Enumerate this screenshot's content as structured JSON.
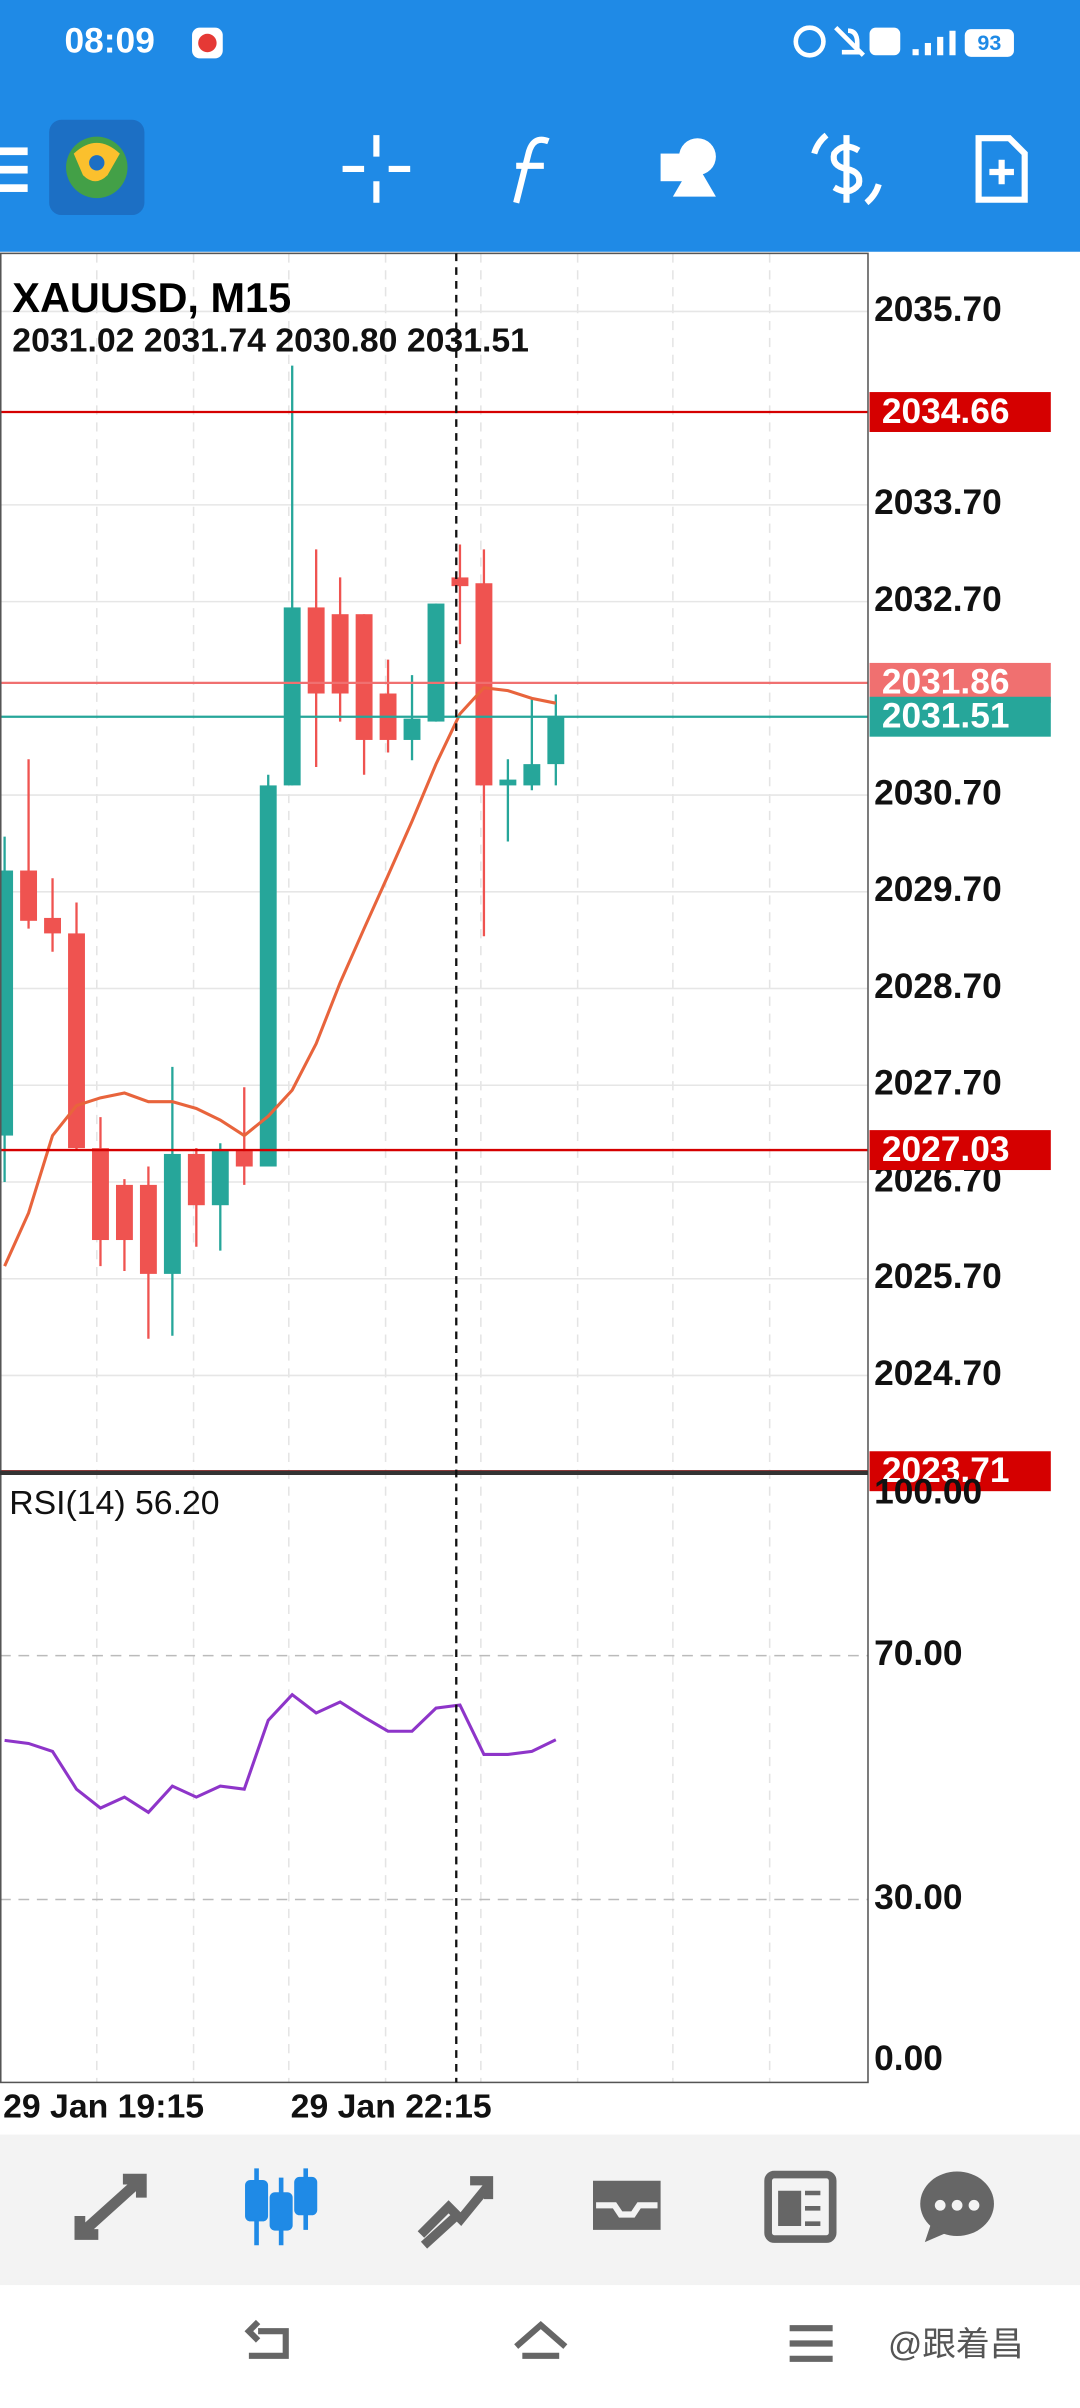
{
  "status_bar": {
    "time": "08:09",
    "battery": "93"
  },
  "watermark": "@跟着昌",
  "chart_data": [
    {
      "type": "candlestick",
      "title": "XAUUSD, M15",
      "subtitle": "2031.02 2031.74 2030.80 2031.51",
      "categories": [
        "29 Jan 19:15",
        null,
        null,
        null,
        null,
        null,
        null,
        null,
        null,
        null,
        null,
        null,
        "29 Jan 22:15",
        null,
        null,
        null,
        null,
        null,
        null,
        null,
        null,
        null,
        null,
        null
      ],
      "open": [
        2027.18,
        2029.92,
        2029.43,
        2029.27,
        2027.05,
        2026.67,
        2026.67,
        2025.75,
        2026.99,
        2026.46,
        2027.02,
        2026.86,
        2030.8,
        2032.64,
        2032.57,
        2032.57,
        2031.75,
        2031.27,
        2031.46,
        2032.95,
        2032.89,
        2030.8,
        2030.8,
        2031.02
      ],
      "high": [
        2030.27,
        2031.07,
        2029.84,
        2029.59,
        2027.37,
        2026.73,
        2026.86,
        2027.89,
        2027.05,
        2027.1,
        2027.68,
        2030.91,
        2035.14,
        2033.24,
        2032.95,
        2032.57,
        2032.1,
        2031.94,
        2032.68,
        2033.29,
        2033.24,
        2031.07,
        2031.7,
        2031.74
      ],
      "low": [
        2026.7,
        2029.32,
        2029.08,
        2027.02,
        2025.83,
        2025.78,
        2025.08,
        2025.11,
        2026.03,
        2025.99,
        2026.67,
        2026.86,
        2030.8,
        2030.99,
        2031.46,
        2030.91,
        2031.14,
        2031.06,
        2031.46,
        2032.26,
        2029.24,
        2030.22,
        2030.75,
        2030.8
      ],
      "close": [
        2029.92,
        2029.4,
        2029.27,
        2027.05,
        2026.1,
        2026.1,
        2025.75,
        2026.99,
        2026.46,
        2027.02,
        2026.86,
        2030.8,
        2032.64,
        2031.75,
        2031.75,
        2031.27,
        2031.27,
        2031.49,
        2032.68,
        2032.86,
        2030.8,
        2030.86,
        2031.02,
        2031.51
      ],
      "up_color": "#26a69a",
      "down_color": "#ef5350",
      "overlay": {
        "color": "#e8643c",
        "values": [
          2025.83,
          2026.38,
          2027.18,
          2027.49,
          2027.57,
          2027.62,
          2027.53,
          2027.53,
          2027.46,
          2027.34,
          2027.18,
          2027.38,
          2027.65,
          2028.13,
          2028.76,
          2029.32,
          2029.87,
          2030.43,
          2031.02,
          2031.54,
          2031.81,
          2031.78,
          2031.7,
          2031.65
        ]
      },
      "levels": [
        {
          "value": 2034.66,
          "color": "#d50000"
        },
        {
          "value": 2031.86,
          "color": "#f07070"
        },
        {
          "value": 2031.51,
          "color": "#26a69a"
        },
        {
          "value": 2027.03,
          "color": "#d50000"
        },
        {
          "value": 2023.71,
          "color": "#d50000"
        }
      ],
      "ylim": [
        2023.71,
        2036.3
      ],
      "yticks": [
        {
          "value": 2035.7,
          "label": "2035.70"
        },
        {
          "value": 2033.7,
          "label": "2033.70"
        },
        {
          "value": 2032.7,
          "label": "2032.70"
        },
        {
          "value": 2030.7,
          "label": "2030.70"
        },
        {
          "value": 2029.7,
          "label": "2029.70"
        },
        {
          "value": 2028.7,
          "label": "2028.70"
        },
        {
          "value": 2027.7,
          "label": "2027.70"
        },
        {
          "value": 2026.7,
          "label": "2026.70"
        },
        {
          "value": 2025.7,
          "label": "2025.70"
        },
        {
          "value": 2024.7,
          "label": "2024.70"
        }
      ],
      "grid": true
    },
    {
      "type": "line",
      "title": "RSI(14) 56.20",
      "color": "#8e35c9",
      "values": [
        56.1,
        55.6,
        54.3,
        48.1,
        45.0,
        46.8,
        44.3,
        48.6,
        46.8,
        48.6,
        48.1,
        59.4,
        63.6,
        60.6,
        62.4,
        59.9,
        57.6,
        57.6,
        61.4,
        61.9,
        53.8,
        53.8,
        54.3,
        56.2
      ],
      "ylim": [
        0,
        100
      ],
      "yticks": [
        {
          "value": 100,
          "label": "100.00"
        },
        {
          "value": 70,
          "label": "70.00"
        },
        {
          "value": 30,
          "label": "30.00"
        },
        {
          "value": 0,
          "label": "0.00"
        }
      ]
    }
  ]
}
